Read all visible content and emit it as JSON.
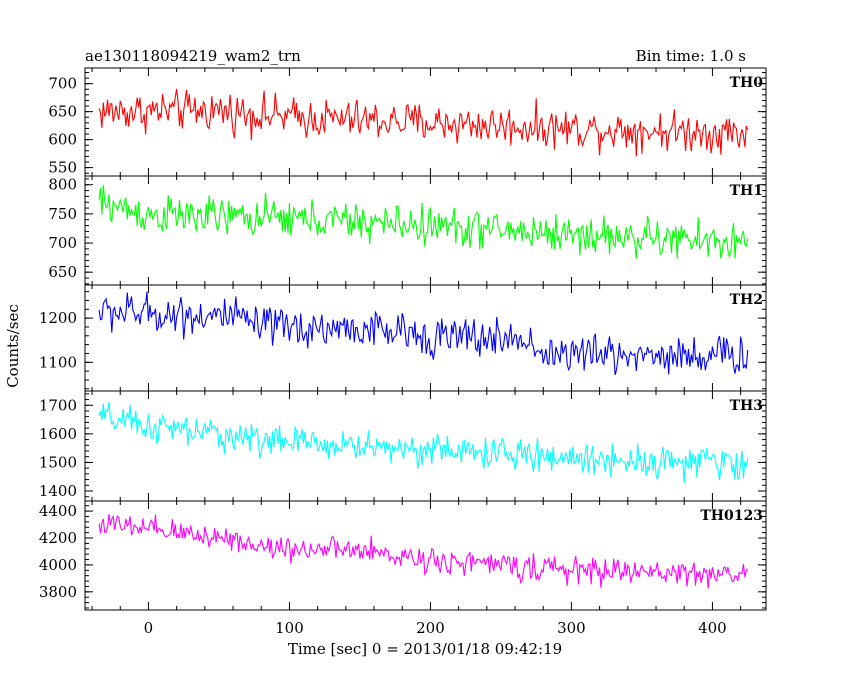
{
  "header": {
    "title": "ae130118094219_wam2_trn",
    "bin_time": "Bin time: 1.0 s"
  },
  "axes": {
    "xlabel": "Time [sec] 0 = 2013/01/18 09:42:19",
    "ylabel": "Counts/sec"
  },
  "chart_data": {
    "type": "line",
    "title": "ae130118094219_wam2_trn",
    "subtitle": "Bin time: 1.0 s",
    "xlabel": "Time [sec] 0 = 2013/01/18 09:42:19",
    "ylabel": "Counts/sec",
    "xlim": [
      -45,
      438
    ],
    "x_ticks": [
      0,
      100,
      200,
      300,
      400
    ],
    "x_start": -35,
    "x_end": 425,
    "x_step": 1,
    "grid": false,
    "series": [
      {
        "name": "TH0",
        "color": "#ff0000",
        "ylim": [
          535,
          728
        ],
        "y_ticks": [
          550,
          600,
          650,
          700
        ],
        "trend": [
          [
            -35,
            650
          ],
          [
            50,
            652
          ],
          [
            100,
            640
          ],
          [
            200,
            630
          ],
          [
            300,
            620
          ],
          [
            425,
            612
          ]
        ],
        "noise": 32
      },
      {
        "name": "TH1",
        "color": "#00ff00",
        "ylim": [
          628,
          815
        ],
        "y_ticks": [
          650,
          700,
          750,
          800
        ],
        "trend": [
          [
            -35,
            770
          ],
          [
            0,
            748
          ],
          [
            100,
            742
          ],
          [
            200,
            730
          ],
          [
            300,
            715
          ],
          [
            425,
            700
          ]
        ],
        "noise": 30
      },
      {
        "name": "TH2",
        "color": "#0000ff",
        "ylim": [
          1035,
          1275
        ],
        "y_ticks": [
          1100,
          1200
        ],
        "trend": [
          [
            -35,
            1215
          ],
          [
            50,
            1205
          ],
          [
            70,
            1195
          ],
          [
            75,
            1180
          ],
          [
            150,
            1175
          ],
          [
            200,
            1160
          ],
          [
            270,
            1150
          ],
          [
            280,
            1120
          ],
          [
            425,
            1115
          ]
        ],
        "noise": 40
      },
      {
        "name": "TH3",
        "color": "#00ffff",
        "ylim": [
          1365,
          1750
        ],
        "y_ticks": [
          1400,
          1500,
          1600,
          1700
        ],
        "trend": [
          [
            -35,
            1660
          ],
          [
            0,
            1625
          ],
          [
            100,
            1570
          ],
          [
            200,
            1545
          ],
          [
            300,
            1515
          ],
          [
            425,
            1495
          ]
        ],
        "noise": 50
      },
      {
        "name": "TH0123",
        "color": "#ff00ff",
        "ylim": [
          3665,
          4475
        ],
        "y_ticks": [
          3800,
          4000,
          4200,
          4400
        ],
        "trend": [
          [
            -35,
            4310
          ],
          [
            0,
            4260
          ],
          [
            60,
            4200
          ],
          [
            75,
            4140
          ],
          [
            150,
            4100
          ],
          [
            200,
            4040
          ],
          [
            300,
            3960
          ],
          [
            425,
            3930
          ]
        ],
        "noise": 85
      }
    ]
  }
}
